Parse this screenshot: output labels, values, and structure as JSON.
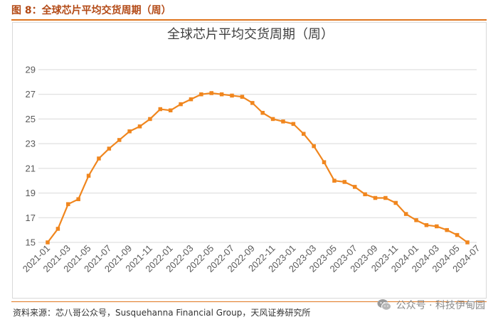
{
  "figure": {
    "caption": "图 8：全球芯片平均交货周期（周）",
    "source": "资料来源：芯八哥公众号，Susquehanna Financial Group，天风证券研究所",
    "watermark": "公众号 · 科技伊甸园",
    "watermark_icon": "wechat-icon",
    "accent_color": "#e0761f"
  },
  "chart_data": {
    "type": "line",
    "title": "全球芯片平均交货周期（周）",
    "xlabel": "",
    "ylabel": "",
    "ylim": [
      15,
      29
    ],
    "yticks": [
      "15",
      "17",
      "19",
      "21",
      "23",
      "25",
      "27",
      "29"
    ],
    "grid": true,
    "legend": "none",
    "line_color": "#f0861e",
    "x": [
      "2021-01",
      "2021-02",
      "2021-03",
      "2021-04",
      "2021-05",
      "2021-06",
      "2021-07",
      "2021-08",
      "2021-09",
      "2021-10",
      "2021-11",
      "2021-12",
      "2022-01",
      "2022-02",
      "2022-03",
      "2022-04",
      "2022-05",
      "2022-06",
      "2022-07",
      "2022-08",
      "2022-09",
      "2022-10",
      "2022-11",
      "2022-12",
      "2023-01",
      "2023-02",
      "2023-03",
      "2023-04",
      "2023-05",
      "2023-06",
      "2023-07",
      "2023-08",
      "2023-09",
      "2023-10",
      "2023-11",
      "2023-12",
      "2024-01",
      "2024-02",
      "2024-03",
      "2024-04",
      "2024-05",
      "2024-06"
    ],
    "xticks": [
      "2021-01",
      "2021-03",
      "2021-05",
      "2021-07",
      "2021-09",
      "2021-11",
      "2022-01",
      "2022-03",
      "2022-05",
      "2022-07",
      "2022-09",
      "2022-11",
      "2023-01",
      "2023-03",
      "2023-05",
      "2023-07",
      "2023-09",
      "2023-11",
      "2024-01",
      "2024-03",
      "2024-05",
      "2024-07"
    ],
    "series": [
      {
        "values": [
          15.0,
          16.1,
          18.1,
          18.5,
          20.4,
          21.8,
          22.6,
          23.3,
          24.0,
          24.4,
          25.0,
          25.8,
          25.7,
          26.2,
          26.6,
          27.0,
          27.1,
          27.0,
          26.9,
          26.8,
          26.3,
          25.5,
          25.0,
          24.8,
          24.6,
          23.8,
          22.8,
          21.5,
          20.0,
          19.9,
          19.5,
          18.9,
          18.6,
          18.6,
          18.2,
          17.3,
          16.8,
          16.4,
          16.3,
          16.0,
          15.6,
          15.0
        ]
      }
    ]
  }
}
